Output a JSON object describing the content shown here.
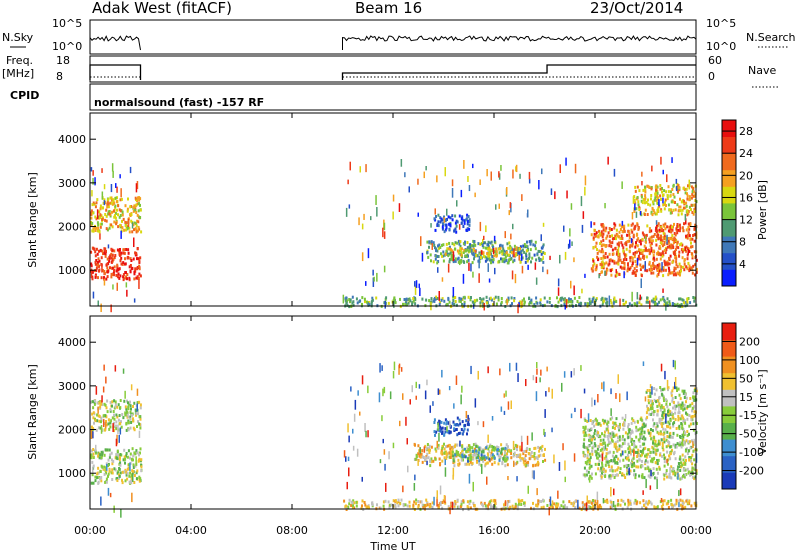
{
  "header": {
    "radar_title": "Adak West (fitACF)",
    "beam": "Beam 16",
    "date": "23/Oct/2014"
  },
  "summary_panels": {
    "nsky_label": "N.Sky",
    "nsky_ticks": [
      "10^5",
      "10^0"
    ],
    "nsearch_label": "N.Search",
    "nsearch_ticks": [
      "10^5",
      "10^0"
    ],
    "freq_label_line1": "Freq.",
    "freq_label_line2": "[MHz]",
    "freq_ticks": [
      "18",
      "8"
    ],
    "nave_label": "Nave",
    "nave_ticks": [
      "60",
      "0"
    ],
    "cpid_label": "CPID",
    "cpid_text": "normalsound (fast) -157 RF"
  },
  "chart_data": [
    {
      "type": "heatmap",
      "name": "power",
      "xlabel": "Time UT",
      "ylabel": "Slant Range [km]",
      "xlim_hours": [
        0,
        24
      ],
      "ylim_km": [
        180,
        4600
      ],
      "x_tick_labels": [
        "00:00",
        "04:00",
        "08:00",
        "12:00",
        "16:00",
        "20:00",
        "00:00"
      ],
      "y_tick_labels": [
        "1000",
        "2000",
        "3000",
        "4000"
      ],
      "colorbar": {
        "label": "Power [dB]",
        "ticks": [
          "4",
          "8",
          "12",
          "16",
          "20",
          "24",
          "28"
        ],
        "range": [
          0,
          30
        ]
      },
      "colors": [
        "#0a1eff",
        "#2450c8",
        "#3f78b8",
        "#4f9a72",
        "#7ac43a",
        "#d8d810",
        "#f5a020",
        "#f06a1e",
        "#ee3a18",
        "#e80e0e"
      ],
      "regions": [
        {
          "t": [
            0.0,
            2.0
          ],
          "range_km": [
            800,
            1550
          ],
          "level": 0.9
        },
        {
          "t": [
            0.0,
            2.0
          ],
          "range_km": [
            1900,
            2700
          ],
          "level": 0.6
        },
        {
          "t": [
            13.3,
            18.0
          ],
          "range_km": [
            1200,
            1700
          ],
          "level": 0.35
        },
        {
          "t": [
            14.0,
            17.0
          ],
          "range_km": [
            1350,
            1550
          ],
          "level": 0.55
        },
        {
          "t": [
            13.6,
            15.0
          ],
          "range_km": [
            1900,
            2300
          ],
          "level": 0.15
        },
        {
          "t": [
            19.8,
            24.0
          ],
          "range_km": [
            900,
            2100
          ],
          "level": 0.75
        },
        {
          "t": [
            21.5,
            24.0
          ],
          "range_km": [
            2300,
            3000
          ],
          "level": 0.6
        },
        {
          "t": [
            10.0,
            24.0
          ],
          "range_km": [
            200,
            420
          ],
          "level": 0.4
        }
      ]
    },
    {
      "type": "heatmap",
      "name": "velocity",
      "xlabel": "Time UT",
      "ylabel": "Slant Range [km]",
      "xlim_hours": [
        0,
        24
      ],
      "ylim_km": [
        180,
        4600
      ],
      "x_tick_labels": [
        "00:00",
        "04:00",
        "08:00",
        "12:00",
        "16:00",
        "20:00",
        "00:00"
      ],
      "y_tick_labels": [
        "1000",
        "2000",
        "3000",
        "4000"
      ],
      "colorbar": {
        "label": "Velocity [m s⁻¹]",
        "ticks": [
          "200",
          "100",
          "50",
          "15",
          "-15",
          "-50",
          "-100",
          "-200"
        ]
      },
      "colors": [
        "#1a3ab8",
        "#2a62c4",
        "#3e8ed0",
        "#58b04a",
        "#88cc3a",
        "#c0c0c0",
        "#f0c030",
        "#f09020",
        "#f05a18",
        "#e81e10"
      ],
      "regions": [
        {
          "t": [
            0.0,
            2.0
          ],
          "range_km": [
            800,
            1600
          ],
          "level": 0.5
        },
        {
          "t": [
            0.0,
            2.0
          ],
          "range_km": [
            2000,
            2700
          ],
          "level": 0.5
        },
        {
          "t": [
            12.8,
            18.0
          ],
          "range_km": [
            1200,
            1700
          ],
          "level": 0.6
        },
        {
          "t": [
            14.3,
            16.5
          ],
          "range_km": [
            1300,
            1650
          ],
          "level": 0.35
        },
        {
          "t": [
            13.6,
            15.0
          ],
          "range_km": [
            1900,
            2300
          ],
          "level": 0.1
        },
        {
          "t": [
            19.5,
            24.0
          ],
          "range_km": [
            900,
            2300
          ],
          "level": 0.5
        },
        {
          "t": [
            22.0,
            24.0
          ],
          "range_km": [
            2300,
            3000
          ],
          "level": 0.5
        },
        {
          "t": [
            10.0,
            24.0
          ],
          "range_km": [
            200,
            420
          ],
          "level": 0.62
        }
      ]
    }
  ]
}
